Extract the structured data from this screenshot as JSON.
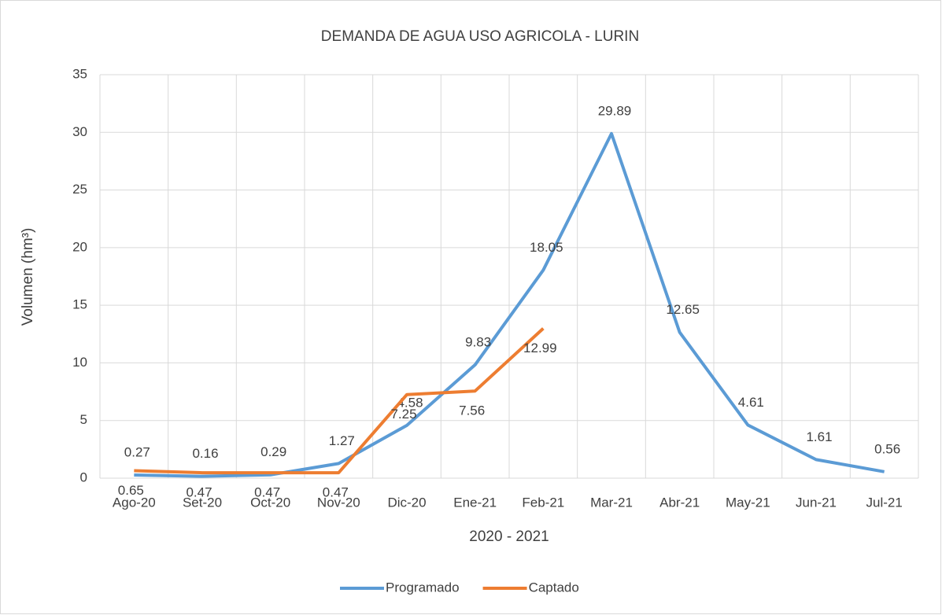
{
  "chart_data": {
    "type": "line",
    "title": "DEMANDA DE AGUA USO AGRICOLA - LURIN",
    "x_label": "2020 - 2021",
    "y_label": "Volumen (hm³)",
    "categories": [
      "Ago-20",
      "Set-20",
      "Oct-20",
      "Nov-20",
      "Dic-20",
      "Ene-21",
      "Feb-21",
      "Mar-21",
      "Abr-21",
      "May-21",
      "Jun-21",
      "Jul-21"
    ],
    "series": [
      {
        "name": "Programado",
        "color": "#5b9bd5",
        "values": [
          0.27,
          0.16,
          0.29,
          1.27,
          4.58,
          9.83,
          18.05,
          29.89,
          12.65,
          4.61,
          1.61,
          0.56
        ]
      },
      {
        "name": "Captado",
        "color": "#ed7d31",
        "values": [
          0.65,
          0.47,
          0.47,
          0.47,
          7.25,
          7.56,
          12.99,
          null,
          null,
          null,
          null,
          null
        ]
      }
    ],
    "ylim": [
      0,
      35
    ],
    "yticks": [
      0,
      5,
      10,
      15,
      20,
      25,
      30,
      35
    ],
    "grid": true,
    "legend": "bottom"
  }
}
